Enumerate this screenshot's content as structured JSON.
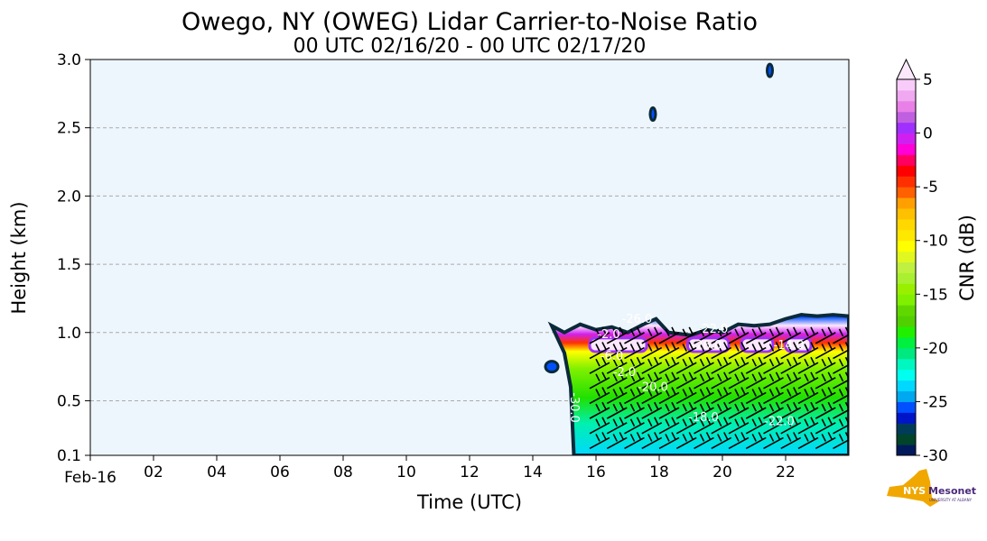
{
  "chart_data": {
    "type": "heatmap",
    "title": "Owego, NY (OWEG) Lidar Carrier-to-Noise Ratio",
    "subtitle": "00 UTC 02/16/20 - 00 UTC 02/17/20",
    "xlabel": "Time (UTC)",
    "ylabel": "Height (km)",
    "xlim": [
      0,
      24
    ],
    "ylim": [
      0.1,
      3.0
    ],
    "x_ticks": [
      {
        "v": 0,
        "label": "Feb-16"
      },
      {
        "v": 2,
        "label": "02"
      },
      {
        "v": 4,
        "label": "04"
      },
      {
        "v": 6,
        "label": "06"
      },
      {
        "v": 8,
        "label": "08"
      },
      {
        "v": 10,
        "label": "10"
      },
      {
        "v": 12,
        "label": "12"
      },
      {
        "v": 14,
        "label": "14"
      },
      {
        "v": 16,
        "label": "16"
      },
      {
        "v": 18,
        "label": "18"
      },
      {
        "v": 20,
        "label": "20"
      },
      {
        "v": 22,
        "label": "22"
      }
    ],
    "y_ticks": [
      {
        "v": 0.1,
        "label": "0.1"
      },
      {
        "v": 0.5,
        "label": "0.5"
      },
      {
        "v": 1.0,
        "label": "1.0"
      },
      {
        "v": 1.5,
        "label": "1.5"
      },
      {
        "v": 2.0,
        "label": "2.0"
      },
      {
        "v": 2.5,
        "label": "2.5"
      },
      {
        "v": 3.0,
        "label": "3.0"
      }
    ],
    "grid": "horizontal dashed",
    "colorbar": {
      "label": "CNR (dB)",
      "min": -30,
      "max": 5,
      "step": 1,
      "extend": "max",
      "ticks": [
        {
          "v": 5,
          "label": "5"
        },
        {
          "v": 0,
          "label": "0"
        },
        {
          "v": -5,
          "label": "-5"
        },
        {
          "v": -10,
          "label": "-10"
        },
        {
          "v": -15,
          "label": "-15"
        },
        {
          "v": -20,
          "label": "-20"
        },
        {
          "v": -25,
          "label": "-25"
        },
        {
          "v": -30,
          "label": "-30"
        }
      ],
      "colors": [
        "#001a5c",
        "#00442a",
        "#003c5a",
        "#0014c8",
        "#0050ff",
        "#00a8f0",
        "#00d8ff",
        "#00ffee",
        "#00f8c0",
        "#00e880",
        "#00f040",
        "#20f000",
        "#50d000",
        "#60d800",
        "#80f000",
        "#98f000",
        "#a8f030",
        "#c0f040",
        "#e0f820",
        "#ffff00",
        "#ffe800",
        "#ffd800",
        "#ffc000",
        "#ffa000",
        "#ff6000",
        "#ff3000",
        "#ff0000",
        "#ff0060",
        "#ff00d8",
        "#d020f0",
        "#a030ff",
        "#c060e0",
        "#e880e8",
        "#f0a8f0",
        "#f8ccf8",
        "#fce8fc"
      ]
    },
    "echo_region": {
      "start_hour": 15.3,
      "top_km": [
        [
          14.6,
          1.05
        ],
        [
          15.0,
          1.0
        ],
        [
          15.5,
          1.06
        ],
        [
          16.0,
          1.02
        ],
        [
          16.5,
          1.04
        ],
        [
          17.0,
          1.0
        ],
        [
          17.5,
          1.06
        ],
        [
          17.9,
          1.1
        ],
        [
          18.3,
          1.0
        ],
        [
          19.0,
          0.98
        ],
        [
          19.5,
          1.02
        ],
        [
          20.0,
          1.0
        ],
        [
          20.5,
          1.06
        ],
        [
          21.0,
          1.05
        ],
        [
          21.5,
          1.06
        ],
        [
          22.0,
          1.1
        ],
        [
          22.5,
          1.13
        ],
        [
          23.0,
          1.12
        ],
        [
          23.5,
          1.13
        ],
        [
          24.0,
          1.12
        ]
      ],
      "bright_layer_km": [
        0.8,
        1.0
      ]
    },
    "isolated_echoes": [
      [
        14.6,
        0.75
      ],
      [
        17.8,
        2.6
      ],
      [
        21.5,
        2.92
      ]
    ],
    "contour_labels": [
      {
        "t": 15.2,
        "h": 0.45,
        "label": "-30.0"
      },
      {
        "t": 17.3,
        "h": 1.07,
        "label": "-26.0"
      },
      {
        "t": 16.4,
        "h": 0.98,
        "label": "-2.0"
      },
      {
        "t": 16.5,
        "h": 0.8,
        "label": "-6.0"
      },
      {
        "t": 16.9,
        "h": 0.78,
        "label": "-2.0"
      },
      {
        "t": 17.8,
        "h": 0.75,
        "label": "-20.0"
      },
      {
        "t": 19.7,
        "h": 1.0,
        "label": "-22.0"
      },
      {
        "t": 19.5,
        "h": 0.92,
        "label": "-26.0"
      },
      {
        "t": 22.1,
        "h": 0.88,
        "label": "-14.0"
      },
      {
        "t": 19.4,
        "h": 0.35,
        "label": "-18.0"
      },
      {
        "t": 21.8,
        "h": 0.32,
        "label": "-22.0"
      }
    ]
  },
  "logo": {
    "text": "NYS Mesonet",
    "subtext": "UNIVERSITY AT ALBANY"
  }
}
